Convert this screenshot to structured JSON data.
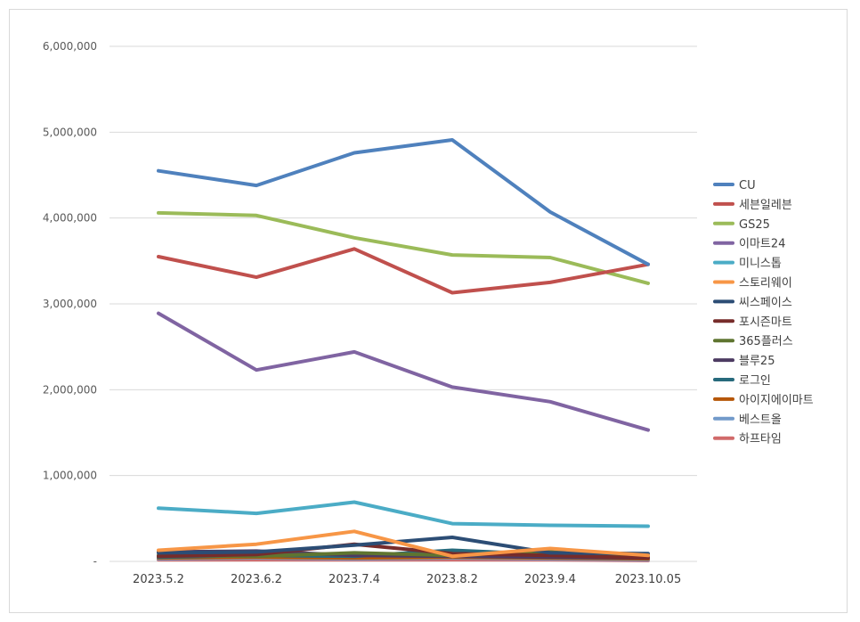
{
  "chart_data": {
    "type": "line",
    "title": "",
    "xlabel": "",
    "ylabel": "",
    "categories": [
      "2023.5.2",
      "2023.6.2",
      "2023.7.4",
      "2023.8.2",
      "2023.9.4",
      "2023.10.05"
    ],
    "ylim": [
      0,
      6000000
    ],
    "yticks": [
      0,
      1000000,
      2000000,
      3000000,
      4000000,
      5000000,
      6000000
    ],
    "ytick_labels": [
      "-",
      "1,000,000",
      "2,000,000",
      "3,000,000",
      "4,000,000",
      "5,000,000",
      "6,000,000"
    ],
    "grid": true,
    "legend_position": "right",
    "series": [
      {
        "name": "CU",
        "color": "#4f81bd",
        "values": [
          4550000,
          4380000,
          4760000,
          4910000,
          4070000,
          3460000
        ]
      },
      {
        "name": "세븐일레븐",
        "color": "#c0504d",
        "values": [
          3550000,
          3310000,
          3640000,
          3130000,
          3250000,
          3460000
        ]
      },
      {
        "name": "GS25",
        "color": "#9bbb59",
        "values": [
          4060000,
          4030000,
          3770000,
          3570000,
          3540000,
          3240000
        ]
      },
      {
        "name": "이마트24",
        "color": "#8064a2",
        "values": [
          2890000,
          2230000,
          2440000,
          2030000,
          1860000,
          1530000
        ]
      },
      {
        "name": "미니스톱",
        "color": "#4bacc6",
        "values": [
          620000,
          560000,
          690000,
          440000,
          420000,
          410000
        ]
      },
      {
        "name": "스토리웨이",
        "color": "#f79646",
        "values": [
          130000,
          200000,
          350000,
          60000,
          150000,
          70000
        ]
      },
      {
        "name": "씨스페이스",
        "color": "#2c4d75",
        "values": [
          100000,
          110000,
          190000,
          280000,
          100000,
          90000
        ]
      },
      {
        "name": "포시즌마트",
        "color": "#772c2a",
        "values": [
          60000,
          80000,
          200000,
          90000,
          70000,
          40000
        ]
      },
      {
        "name": "365플러스",
        "color": "#5f7530",
        "values": [
          70000,
          60000,
          100000,
          70000,
          110000,
          60000
        ]
      },
      {
        "name": "블루25",
        "color": "#4d3b62",
        "values": [
          110000,
          120000,
          70000,
          60000,
          50000,
          40000
        ]
      },
      {
        "name": "로그인",
        "color": "#276a7c",
        "values": [
          50000,
          70000,
          60000,
          130000,
          80000,
          50000
        ]
      },
      {
        "name": "아이지에이마트",
        "color": "#b65708",
        "values": [
          40000,
          50000,
          40000,
          50000,
          40000,
          30000
        ]
      },
      {
        "name": "베스트올",
        "color": "#729aca",
        "values": [
          30000,
          40000,
          30000,
          40000,
          30000,
          20000
        ]
      },
      {
        "name": "하프타임",
        "color": "#d16a6a",
        "values": [
          20000,
          20000,
          20000,
          20000,
          20000,
          10000
        ]
      }
    ]
  }
}
